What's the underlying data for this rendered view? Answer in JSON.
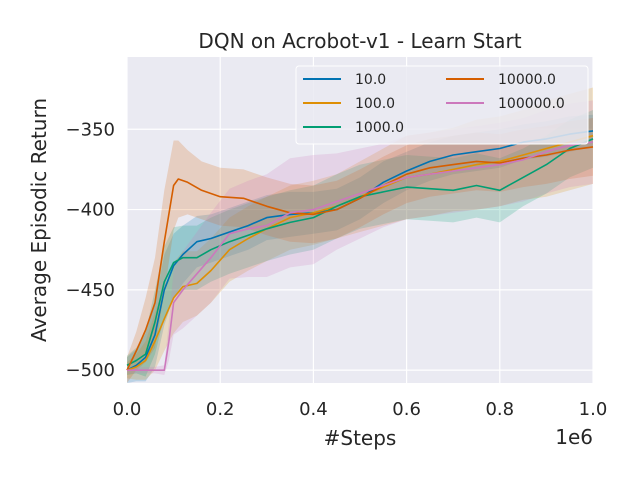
{
  "chart_data": {
    "type": "line",
    "title": "DQN on Acrobot-v1 - Learn Start",
    "xlabel": "#Steps",
    "ylabel": "Average Episodic Return",
    "x_offset_label": "1e6",
    "xlim": [
      0.0,
      1.0
    ],
    "ylim": [
      -508,
      -305
    ],
    "xticks": [
      0.0,
      0.2,
      0.4,
      0.6,
      0.8,
      1.0
    ],
    "xtick_labels": [
      "0.0",
      "0.2",
      "0.4",
      "0.6",
      "0.8",
      "1.0"
    ],
    "yticks": [
      -500,
      -450,
      -400,
      -350
    ],
    "ytick_labels": [
      "−500",
      "−450",
      "−400",
      "−350"
    ],
    "grid": true,
    "legend_position": "top-right",
    "series": [
      {
        "name": "10.0",
        "color": "#0173b2",
        "x": [
          0,
          0.02,
          0.04,
          0.06,
          0.08,
          0.1,
          0.12,
          0.15,
          0.18,
          0.22,
          0.26,
          0.3,
          0.35,
          0.4,
          0.45,
          0.5,
          0.55,
          0.6,
          0.65,
          0.7,
          0.75,
          0.8,
          0.85,
          0.9,
          0.95,
          1.0
        ],
        "y": [
          -500,
          -497,
          -492,
          -478,
          -450,
          -435,
          -428,
          -420,
          -418,
          -414,
          -410,
          -405,
          -403,
          -402,
          -400,
          -393,
          -383,
          -376,
          -370,
          -366,
          -364,
          -362,
          -358,
          -356,
          -353,
          -351
        ],
        "band": [
          8,
          10,
          15,
          20,
          22,
          20,
          18,
          16,
          15,
          15,
          15,
          14,
          14,
          13,
          13,
          13,
          13,
          12,
          12,
          12,
          12,
          12,
          11,
          11,
          11,
          10
        ]
      },
      {
        "name": "100.0",
        "color": "#de8f05",
        "x": [
          0,
          0.02,
          0.04,
          0.06,
          0.08,
          0.1,
          0.12,
          0.15,
          0.18,
          0.22,
          0.26,
          0.3,
          0.35,
          0.4,
          0.45,
          0.5,
          0.55,
          0.6,
          0.65,
          0.7,
          0.75,
          0.8,
          0.85,
          0.9,
          0.95,
          1.0
        ],
        "y": [
          -500,
          -498,
          -494,
          -482,
          -468,
          -455,
          -448,
          -446,
          -438,
          -425,
          -418,
          -412,
          -405,
          -402,
          -398,
          -392,
          -386,
          -380,
          -378,
          -375,
          -372,
          -370,
          -366,
          -362,
          -358,
          -354
        ],
        "band": [
          5,
          8,
          12,
          18,
          20,
          22,
          22,
          20,
          20,
          20,
          20,
          20,
          20,
          20,
          20,
          22,
          24,
          26,
          26,
          26,
          28,
          28,
          28,
          30,
          30,
          30
        ]
      },
      {
        "name": "1000.0",
        "color": "#029e73",
        "x": [
          0,
          0.02,
          0.04,
          0.06,
          0.08,
          0.1,
          0.12,
          0.15,
          0.18,
          0.22,
          0.26,
          0.3,
          0.35,
          0.4,
          0.45,
          0.5,
          0.55,
          0.6,
          0.65,
          0.7,
          0.75,
          0.8,
          0.85,
          0.9,
          0.95,
          1.0
        ],
        "y": [
          -497,
          -494,
          -490,
          -470,
          -445,
          -433,
          -430,
          -430,
          -425,
          -420,
          -416,
          -412,
          -408,
          -405,
          -398,
          -392,
          -389,
          -386,
          -387,
          -388,
          -385,
          -388,
          -380,
          -372,
          -362,
          -356
        ],
        "band": [
          6,
          8,
          14,
          20,
          22,
          22,
          20,
          20,
          20,
          20,
          20,
          20,
          20,
          20,
          20,
          20,
          20,
          20,
          20,
          20,
          20,
          20,
          18,
          18,
          18,
          18
        ]
      },
      {
        "name": "10000.0",
        "color": "#d55e00",
        "x": [
          0,
          0.02,
          0.04,
          0.06,
          0.08,
          0.1,
          0.11,
          0.13,
          0.16,
          0.2,
          0.25,
          0.3,
          0.35,
          0.4,
          0.45,
          0.5,
          0.55,
          0.6,
          0.65,
          0.7,
          0.75,
          0.8,
          0.85,
          0.9,
          0.95,
          1.0
        ],
        "y": [
          -500,
          -488,
          -475,
          -458,
          -420,
          -385,
          -381,
          -383,
          -388,
          -392,
          -393,
          -398,
          -402,
          -403,
          -400,
          -393,
          -385,
          -378,
          -374,
          -372,
          -370,
          -371,
          -368,
          -366,
          -363,
          -361
        ],
        "band": [
          8,
          12,
          20,
          28,
          32,
          28,
          24,
          20,
          18,
          18,
          18,
          18,
          18,
          18,
          18,
          18,
          18,
          18,
          18,
          18,
          18,
          18,
          18,
          18,
          18,
          18
        ]
      },
      {
        "name": "100000.0",
        "color": "#cc78bc",
        "x": [
          0,
          0.02,
          0.04,
          0.06,
          0.08,
          0.09,
          0.1,
          0.12,
          0.15,
          0.18,
          0.22,
          0.26,
          0.3,
          0.35,
          0.4,
          0.45,
          0.5,
          0.55,
          0.6,
          0.65,
          0.7,
          0.75,
          0.8,
          0.85,
          0.9,
          0.95,
          1.0
        ],
        "y": [
          -500,
          -500,
          -500,
          -500,
          -500,
          -482,
          -458,
          -450,
          -440,
          -430,
          -415,
          -412,
          -410,
          -402,
          -400,
          -395,
          -390,
          -385,
          -380,
          -378,
          -376,
          -374,
          -372,
          -369,
          -364,
          -360,
          -358
        ],
        "band": [
          2,
          2,
          2,
          2,
          3,
          12,
          20,
          24,
          26,
          28,
          28,
          30,
          32,
          34,
          34,
          30,
          28,
          26,
          26,
          26,
          26,
          26,
          26,
          26,
          26,
          26,
          26
        ]
      }
    ]
  },
  "legend": {
    "items": [
      {
        "label": "10.0",
        "color": "#0173b2"
      },
      {
        "label": "100.0",
        "color": "#de8f05"
      },
      {
        "label": "1000.0",
        "color": "#029e73"
      },
      {
        "label": "10000.0",
        "color": "#d55e00"
      },
      {
        "label": "100000.0",
        "color": "#cc78bc"
      }
    ]
  },
  "colors": {
    "plot_background": "#eaeaf2",
    "grid": "#ffffff",
    "text": "#262626"
  }
}
